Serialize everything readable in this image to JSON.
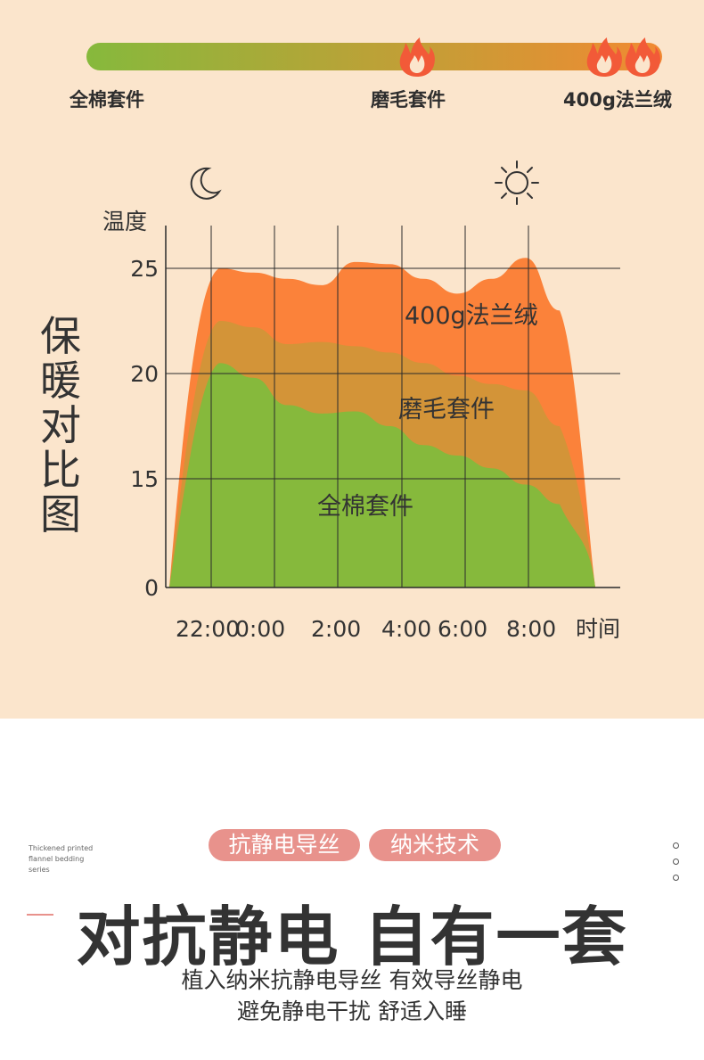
{
  "warmth_scale": {
    "labels": [
      "全棉套件",
      "磨毛套件",
      "400g法兰绒"
    ],
    "colors": {
      "start": "#86b93c",
      "end": "#f18a32",
      "flame": "#f25a38"
    },
    "icons": [
      "flame-icon",
      "double-flame-icon"
    ]
  },
  "side_title": [
    "保",
    "暖",
    "对",
    "比",
    "图"
  ],
  "chart_data": {
    "type": "area",
    "ylabel": "温度",
    "xlabel": "时间",
    "y_ticks": [
      "25",
      "20",
      "15",
      "0"
    ],
    "x_ticks": [
      "22:00",
      "0:00",
      "2:00",
      "4:00",
      "6:00",
      "8:00"
    ],
    "icons": [
      "moon-icon",
      "sun-icon"
    ],
    "grid": true,
    "series": [
      {
        "name": "400g法兰绒",
        "color": "#fb823a",
        "values": [
          25,
          24.8,
          24.5,
          24.2,
          25.3,
          25.2,
          24.5,
          23.8,
          24.5,
          25.5,
          23
        ]
      },
      {
        "name": "磨毛套件",
        "color": "#d39438",
        "values": [
          22.5,
          22.2,
          21.4,
          21.5,
          21.3,
          21,
          20.5,
          19.9,
          19.5,
          19.2,
          17.5
        ]
      },
      {
        "name": "全棉套件",
        "color": "#86b93c",
        "values": [
          20.5,
          19.8,
          18.5,
          18.1,
          18.2,
          17.5,
          16.6,
          16.1,
          15.5,
          14.2,
          11.5
        ]
      }
    ]
  },
  "tags": [
    "抗静电导丝",
    "纳米技术"
  ],
  "english_note": [
    "Thickened printed",
    "flannel bedding",
    "series"
  ],
  "headline": "对抗静电 自有一套",
  "subtitles": [
    "植入纳米抗静电导丝 有效导丝静电",
    "避免静电干扰 舒适入睡"
  ]
}
